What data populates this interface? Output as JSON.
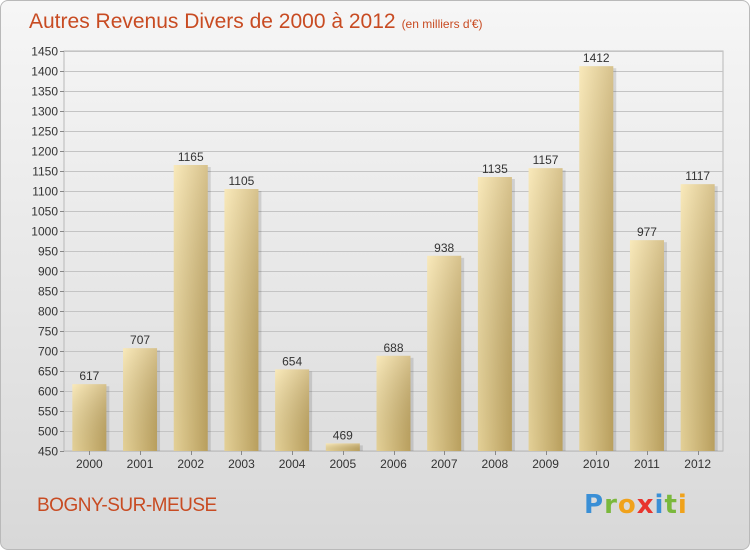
{
  "header": {
    "title": "Autres Revenus Divers de 2000 à 2012",
    "unit": "(en milliers d'€)"
  },
  "footer": {
    "commune": "BOGNY-SUR-MEUSE",
    "logo_letters": [
      "P",
      "r",
      "o",
      "x",
      "i",
      "t",
      "i"
    ],
    "logo_colors": [
      "#3a8fd6",
      "#7ab83c",
      "#f0a21b",
      "#e8352e",
      "#3a8fd6",
      "#7ab83c",
      "#f0a21b"
    ]
  },
  "colors": {
    "title": "#c84b22",
    "bar_light": "#f6df9e",
    "bar_dark": "#c7ab63",
    "grid": "#c4c4c4",
    "axis_text": "#333333"
  },
  "chart_data": {
    "type": "bar",
    "title": "Autres Revenus Divers de 2000 à 2012",
    "subtitle": "(en milliers d'€)",
    "xlabel": "",
    "ylabel": "",
    "categories": [
      "2000",
      "2001",
      "2002",
      "2003",
      "2004",
      "2005",
      "2006",
      "2007",
      "2008",
      "2009",
      "2010",
      "2011",
      "2012"
    ],
    "values": [
      617,
      707,
      1165,
      1105,
      654,
      469,
      688,
      938,
      1135,
      1157,
      1412,
      977,
      1117
    ],
    "ylim": [
      450,
      1450
    ],
    "yticks": [
      450,
      500,
      550,
      600,
      650,
      700,
      750,
      800,
      850,
      900,
      950,
      1000,
      1050,
      1100,
      1150,
      1200,
      1250,
      1300,
      1350,
      1400,
      1450
    ],
    "grid": true,
    "legend": "none",
    "data_labels": true
  }
}
